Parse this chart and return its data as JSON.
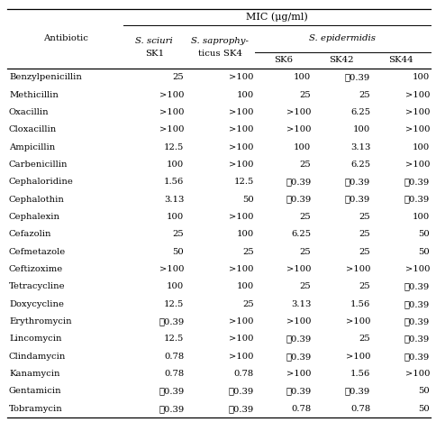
{
  "title": "MIC (μg/ml)",
  "antibiotics": [
    "Benzylpenicillin",
    "Methicillin",
    "Oxacillin",
    "Cloxacillin",
    "Ampicillin",
    "Carbenicillin",
    "Cephaloridine",
    "Cephalothin",
    "Cephalexin",
    "Cefazolin",
    "Cefmetazole",
    "Ceftizoxime",
    "Tetracycline",
    "Doxycycline",
    "Erythromycin",
    "Lincomycin",
    "Clindamycin",
    "Kanamycin",
    "Gentamicin",
    "Tobramycin"
  ],
  "data": [
    [
      "25",
      ">100",
      "100",
      "≦0.39",
      "100"
    ],
    [
      ">100",
      "100",
      "25",
      "25",
      ">100"
    ],
    [
      ">100",
      ">100",
      ">100",
      "6.25",
      ">100"
    ],
    [
      ">100",
      ">100",
      ">100",
      "100",
      ">100"
    ],
    [
      "12.5",
      ">100",
      "100",
      "3.13",
      "100"
    ],
    [
      "100",
      ">100",
      "25",
      "6.25",
      ">100"
    ],
    [
      "1.56",
      "12.5",
      "≦0.39",
      "≦0.39",
      "≦0.39"
    ],
    [
      "3.13",
      "50",
      "≦0.39",
      "≦0.39",
      "≦0.39"
    ],
    [
      "100",
      ">100",
      "25",
      "25",
      "100"
    ],
    [
      "25",
      "100",
      "6.25",
      "25",
      "50"
    ],
    [
      "50",
      "25",
      "25",
      "25",
      "50"
    ],
    [
      ">100",
      ">100",
      ">100",
      ">100",
      ">100"
    ],
    [
      "100",
      "100",
      "25",
      "25",
      "≦0.39"
    ],
    [
      "12.5",
      "25",
      "3.13",
      "1.56",
      "≦0.39"
    ],
    [
      "≦0.39",
      ">100",
      ">100",
      ">100",
      "≦0.39"
    ],
    [
      "12.5",
      ">100",
      "≦0.39",
      "25",
      "≦0.39"
    ],
    [
      "0.78",
      ">100",
      "≦0.39",
      ">100",
      "≦0.39"
    ],
    [
      "0.78",
      "0.78",
      ">100",
      "1.56",
      ">100"
    ],
    [
      "≦0.39",
      "≦0.39",
      "≦0.39",
      "≦0.39",
      "50"
    ],
    [
      "≦0.39",
      "≦0.39",
      "0.78",
      "0.78",
      "50"
    ]
  ],
  "bg_color": "#ffffff",
  "text_color": "#000000"
}
